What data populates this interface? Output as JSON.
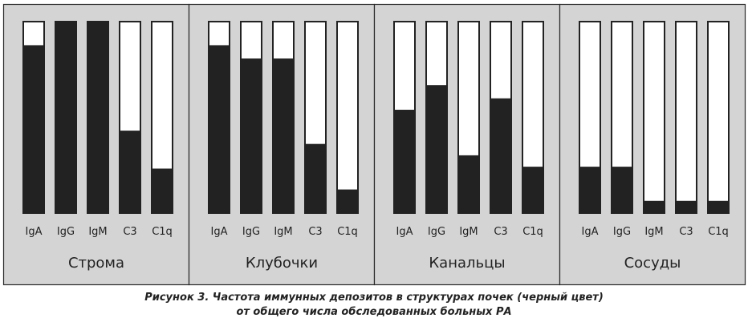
{
  "chart_data": {
    "type": "bar",
    "stacked": true,
    "ylim": [
      0,
      100
    ],
    "colors": {
      "dark": "#222222",
      "light": "#ffffff",
      "panel": "#d4d4d4",
      "border": "#2a2a2a"
    },
    "groups": [
      {
        "title": "Строма",
        "categories": [
          "IgA",
          "IgG",
          "IgM",
          "C3",
          "C1q"
        ],
        "values": [
          88,
          100,
          100,
          43,
          23
        ]
      },
      {
        "title": "Клубочки",
        "categories": [
          "IgA",
          "IgG",
          "IgM",
          "C3",
          "C1q"
        ],
        "values": [
          88,
          81,
          81,
          36,
          12
        ]
      },
      {
        "title": "Канальцы",
        "categories": [
          "IgA",
          "IgG",
          "IgM",
          "C3",
          "C1q"
        ],
        "values": [
          54,
          67,
          30,
          60,
          24
        ]
      },
      {
        "title": "Сосуды",
        "categories": [
          "IgA",
          "IgG",
          "IgM",
          "C3",
          "C1q"
        ],
        "values": [
          24,
          24,
          6,
          6,
          6
        ]
      }
    ]
  },
  "caption": {
    "line1": "Рисунок 3. Частота иммунных депозитов в структурах почек (черный цвет)",
    "line2": "от общего числа обследованных больных РА"
  }
}
